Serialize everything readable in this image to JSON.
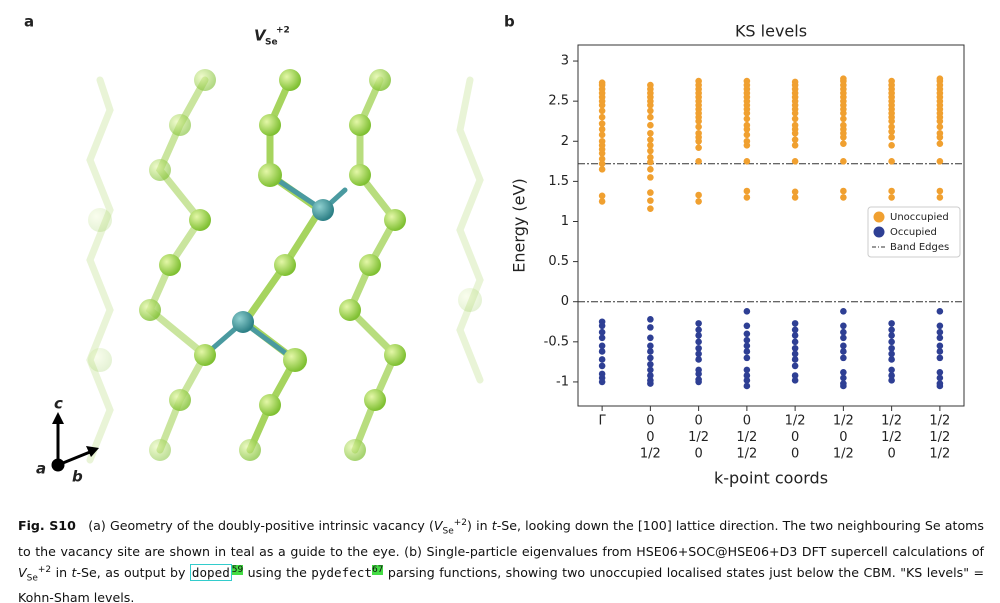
{
  "panel_labels": [
    "a",
    "b"
  ],
  "structure": {
    "title": [
      "V",
      "Se",
      "+2"
    ],
    "axes": [
      "c",
      "a",
      "b"
    ]
  },
  "chart_data": {
    "type": "strip",
    "title": "KS levels",
    "xlabel": "k-point coords",
    "ylabel": "Energy (eV)",
    "categories": [
      [
        "Γ"
      ],
      [
        "0",
        "0",
        "1/2"
      ],
      [
        "0",
        "1/2",
        "0"
      ],
      [
        "0",
        "1/2",
        "1/2"
      ],
      [
        "1/2",
        "0",
        "0"
      ],
      [
        "1/2",
        "0",
        "1/2"
      ],
      [
        "1/2",
        "1/2",
        "0"
      ],
      [
        "1/2",
        "1/2",
        "1/2"
      ]
    ],
    "series": [
      {
        "name": "Unoccupied",
        "color": "#f0a030",
        "values": [
          [
            1.25,
            1.32,
            1.65,
            1.72,
            1.78,
            1.85,
            1.9,
            1.95,
            2.0,
            2.08,
            2.15,
            2.22,
            2.3,
            2.38,
            2.45,
            2.5,
            2.55,
            2.6,
            2.65,
            2.7,
            2.73
          ],
          [
            1.16,
            1.26,
            1.36,
            1.55,
            1.65,
            1.74,
            1.8,
            1.88,
            1.95,
            2.02,
            2.1,
            2.2,
            2.3,
            2.38,
            2.45,
            2.5,
            2.55,
            2.6,
            2.65,
            2.7
          ],
          [
            1.25,
            1.33,
            1.75,
            1.92,
            2.0,
            2.05,
            2.1,
            2.18,
            2.25,
            2.3,
            2.35,
            2.4,
            2.45,
            2.5,
            2.55,
            2.6,
            2.65,
            2.7,
            2.75
          ],
          [
            1.3,
            1.38,
            1.75,
            1.95,
            2.0,
            2.08,
            2.15,
            2.2,
            2.28,
            2.35,
            2.4,
            2.45,
            2.5,
            2.55,
            2.6,
            2.65,
            2.7,
            2.75
          ],
          [
            1.3,
            1.37,
            1.75,
            1.95,
            2.02,
            2.1,
            2.15,
            2.2,
            2.28,
            2.35,
            2.4,
            2.45,
            2.5,
            2.55,
            2.6,
            2.65,
            2.7,
            2.74
          ],
          [
            1.3,
            1.38,
            1.75,
            1.97,
            2.05,
            2.1,
            2.15,
            2.2,
            2.28,
            2.35,
            2.4,
            2.45,
            2.5,
            2.55,
            2.6,
            2.65,
            2.7,
            2.75,
            2.78
          ],
          [
            1.3,
            1.38,
            1.75,
            1.95,
            2.05,
            2.12,
            2.18,
            2.25,
            2.3,
            2.35,
            2.4,
            2.45,
            2.5,
            2.55,
            2.6,
            2.65,
            2.7,
            2.75
          ],
          [
            1.3,
            1.38,
            1.75,
            1.97,
            2.05,
            2.1,
            2.18,
            2.25,
            2.3,
            2.35,
            2.4,
            2.45,
            2.5,
            2.55,
            2.6,
            2.65,
            2.7,
            2.75,
            2.78
          ]
        ]
      },
      {
        "name": "Occupied",
        "color": "#2e3f94",
        "values": [
          [
            -0.25,
            -0.3,
            -0.38,
            -0.45,
            -0.55,
            -0.62,
            -0.72,
            -0.8,
            -0.9,
            -0.95,
            -1.0
          ],
          [
            -0.22,
            -0.32,
            -0.45,
            -0.55,
            -0.62,
            -0.7,
            -0.78,
            -0.85,
            -0.92,
            -0.98,
            -1.02
          ],
          [
            -0.27,
            -0.35,
            -0.42,
            -0.5,
            -0.58,
            -0.65,
            -0.72,
            -0.85,
            -0.9,
            -0.97,
            -1.0
          ],
          [
            -0.12,
            -0.3,
            -0.4,
            -0.48,
            -0.55,
            -0.62,
            -0.7,
            -0.85,
            -0.92,
            -0.98,
            -1.05
          ],
          [
            -0.27,
            -0.35,
            -0.42,
            -0.5,
            -0.58,
            -0.65,
            -0.72,
            -0.8,
            -0.92,
            -0.98
          ],
          [
            -0.12,
            -0.3,
            -0.38,
            -0.45,
            -0.55,
            -0.62,
            -0.7,
            -0.88,
            -0.95,
            -1.02,
            -1.05
          ],
          [
            -0.27,
            -0.35,
            -0.42,
            -0.5,
            -0.58,
            -0.65,
            -0.72,
            -0.85,
            -0.92,
            -0.98
          ],
          [
            -0.12,
            -0.3,
            -0.38,
            -0.45,
            -0.55,
            -0.62,
            -0.7,
            -0.88,
            -0.95,
            -1.02,
            -1.05
          ]
        ]
      }
    ],
    "band_edges": {
      "name": "Band Edges",
      "values": [
        0,
        1.72
      ]
    },
    "ylim": [
      -1.3,
      3.2
    ],
    "yticks": [
      -1,
      -0.5,
      0,
      0.5,
      1,
      1.5,
      2,
      2.5,
      3
    ],
    "legend": "right"
  },
  "caption": [
    "Fig. S10",
    "(a) Geometry of the doubly-positive intrinsic vacancy (",
    "V",
    "Se",
    "+2",
    ") in ",
    "t",
    "-Se, looking down the [100] lattice direction. The two neighbouring Se atoms to the vacancy site are shown in teal as a guide to the eye. (b) Single-particle eigenvalues from HSE06+SOC@HSE06+D3 DFT supercell calculations of ",
    "V",
    "Se",
    "+2",
    " in ",
    "t",
    "-Se, as output by ",
    "doped",
    "59",
    " using the ",
    "pydefect",
    "67",
    " parsing functions, showing two unoccupied localised states just below the CBM. \"KS levels\" = Kohn-Sham levels."
  ]
}
